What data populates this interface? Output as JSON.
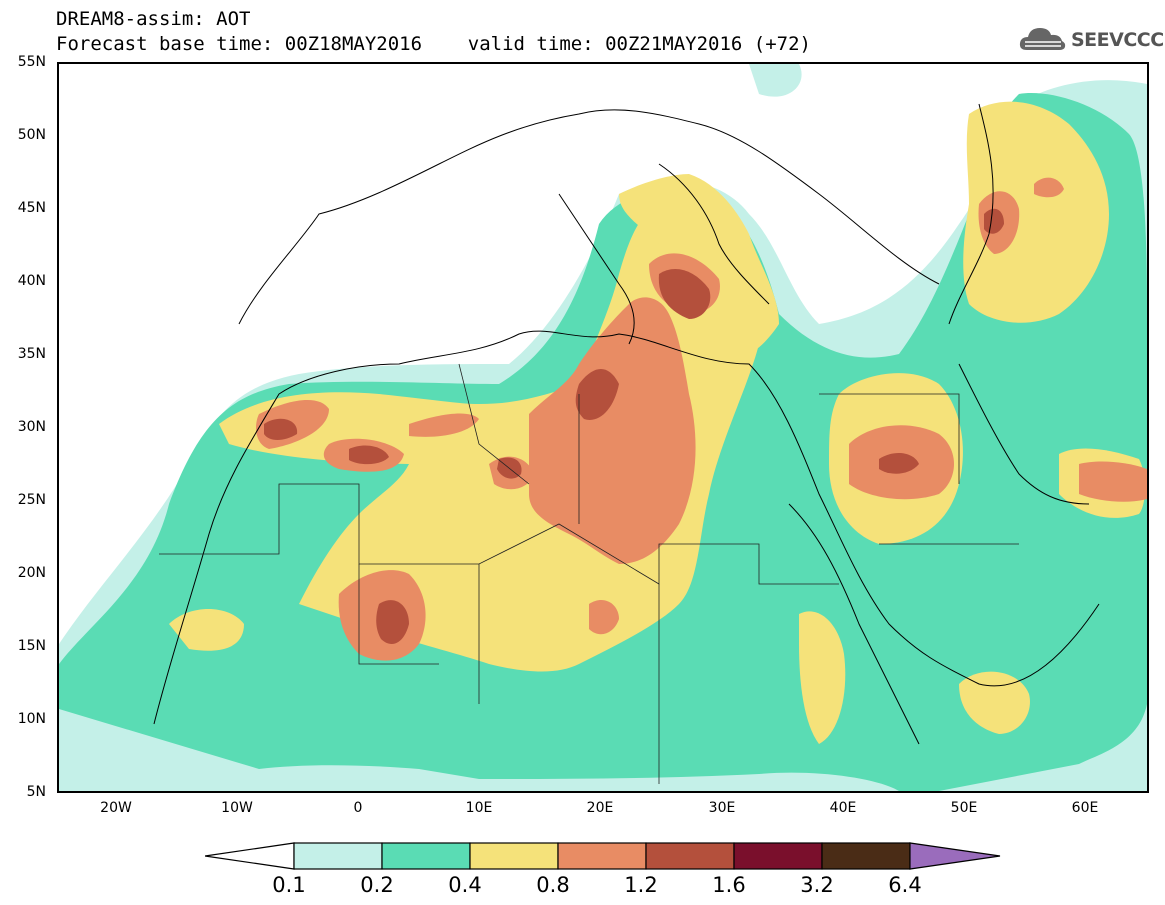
{
  "header": {
    "title_line1": "DREAM8-assim: AOT",
    "title_line2": "Forecast base time: 00Z18MAY2016    valid time: 00Z21MAY2016 (+72)"
  },
  "logo": {
    "text": "SEEVCCC",
    "icon": "cloud-icon"
  },
  "axes": {
    "lat_labels": [
      "55N",
      "50N",
      "45N",
      "40N",
      "35N",
      "30N",
      "25N",
      "20N",
      "15N",
      "10N",
      "5N"
    ],
    "lon_labels": [
      "20W",
      "10W",
      "0",
      "10E",
      "20E",
      "30E",
      "40E",
      "50E",
      "60E"
    ]
  },
  "colorbar": {
    "labels": [
      "0.1",
      "0.2",
      "0.4",
      "0.8",
      "1.2",
      "1.6",
      "3.2",
      "6.4"
    ],
    "colors": {
      "0.1-0.2": "#c4f0e8",
      "0.2-0.4": "#5adcb4",
      "0.4-0.8": "#f5e27a",
      "0.8-1.2": "#e88c64",
      "1.2-1.6": "#b4503c",
      "1.6-3.2": "#7a0f2c",
      "3.2-6.4": "#4a2c16",
      ">6.4": "#9a6cbc"
    }
  }
}
